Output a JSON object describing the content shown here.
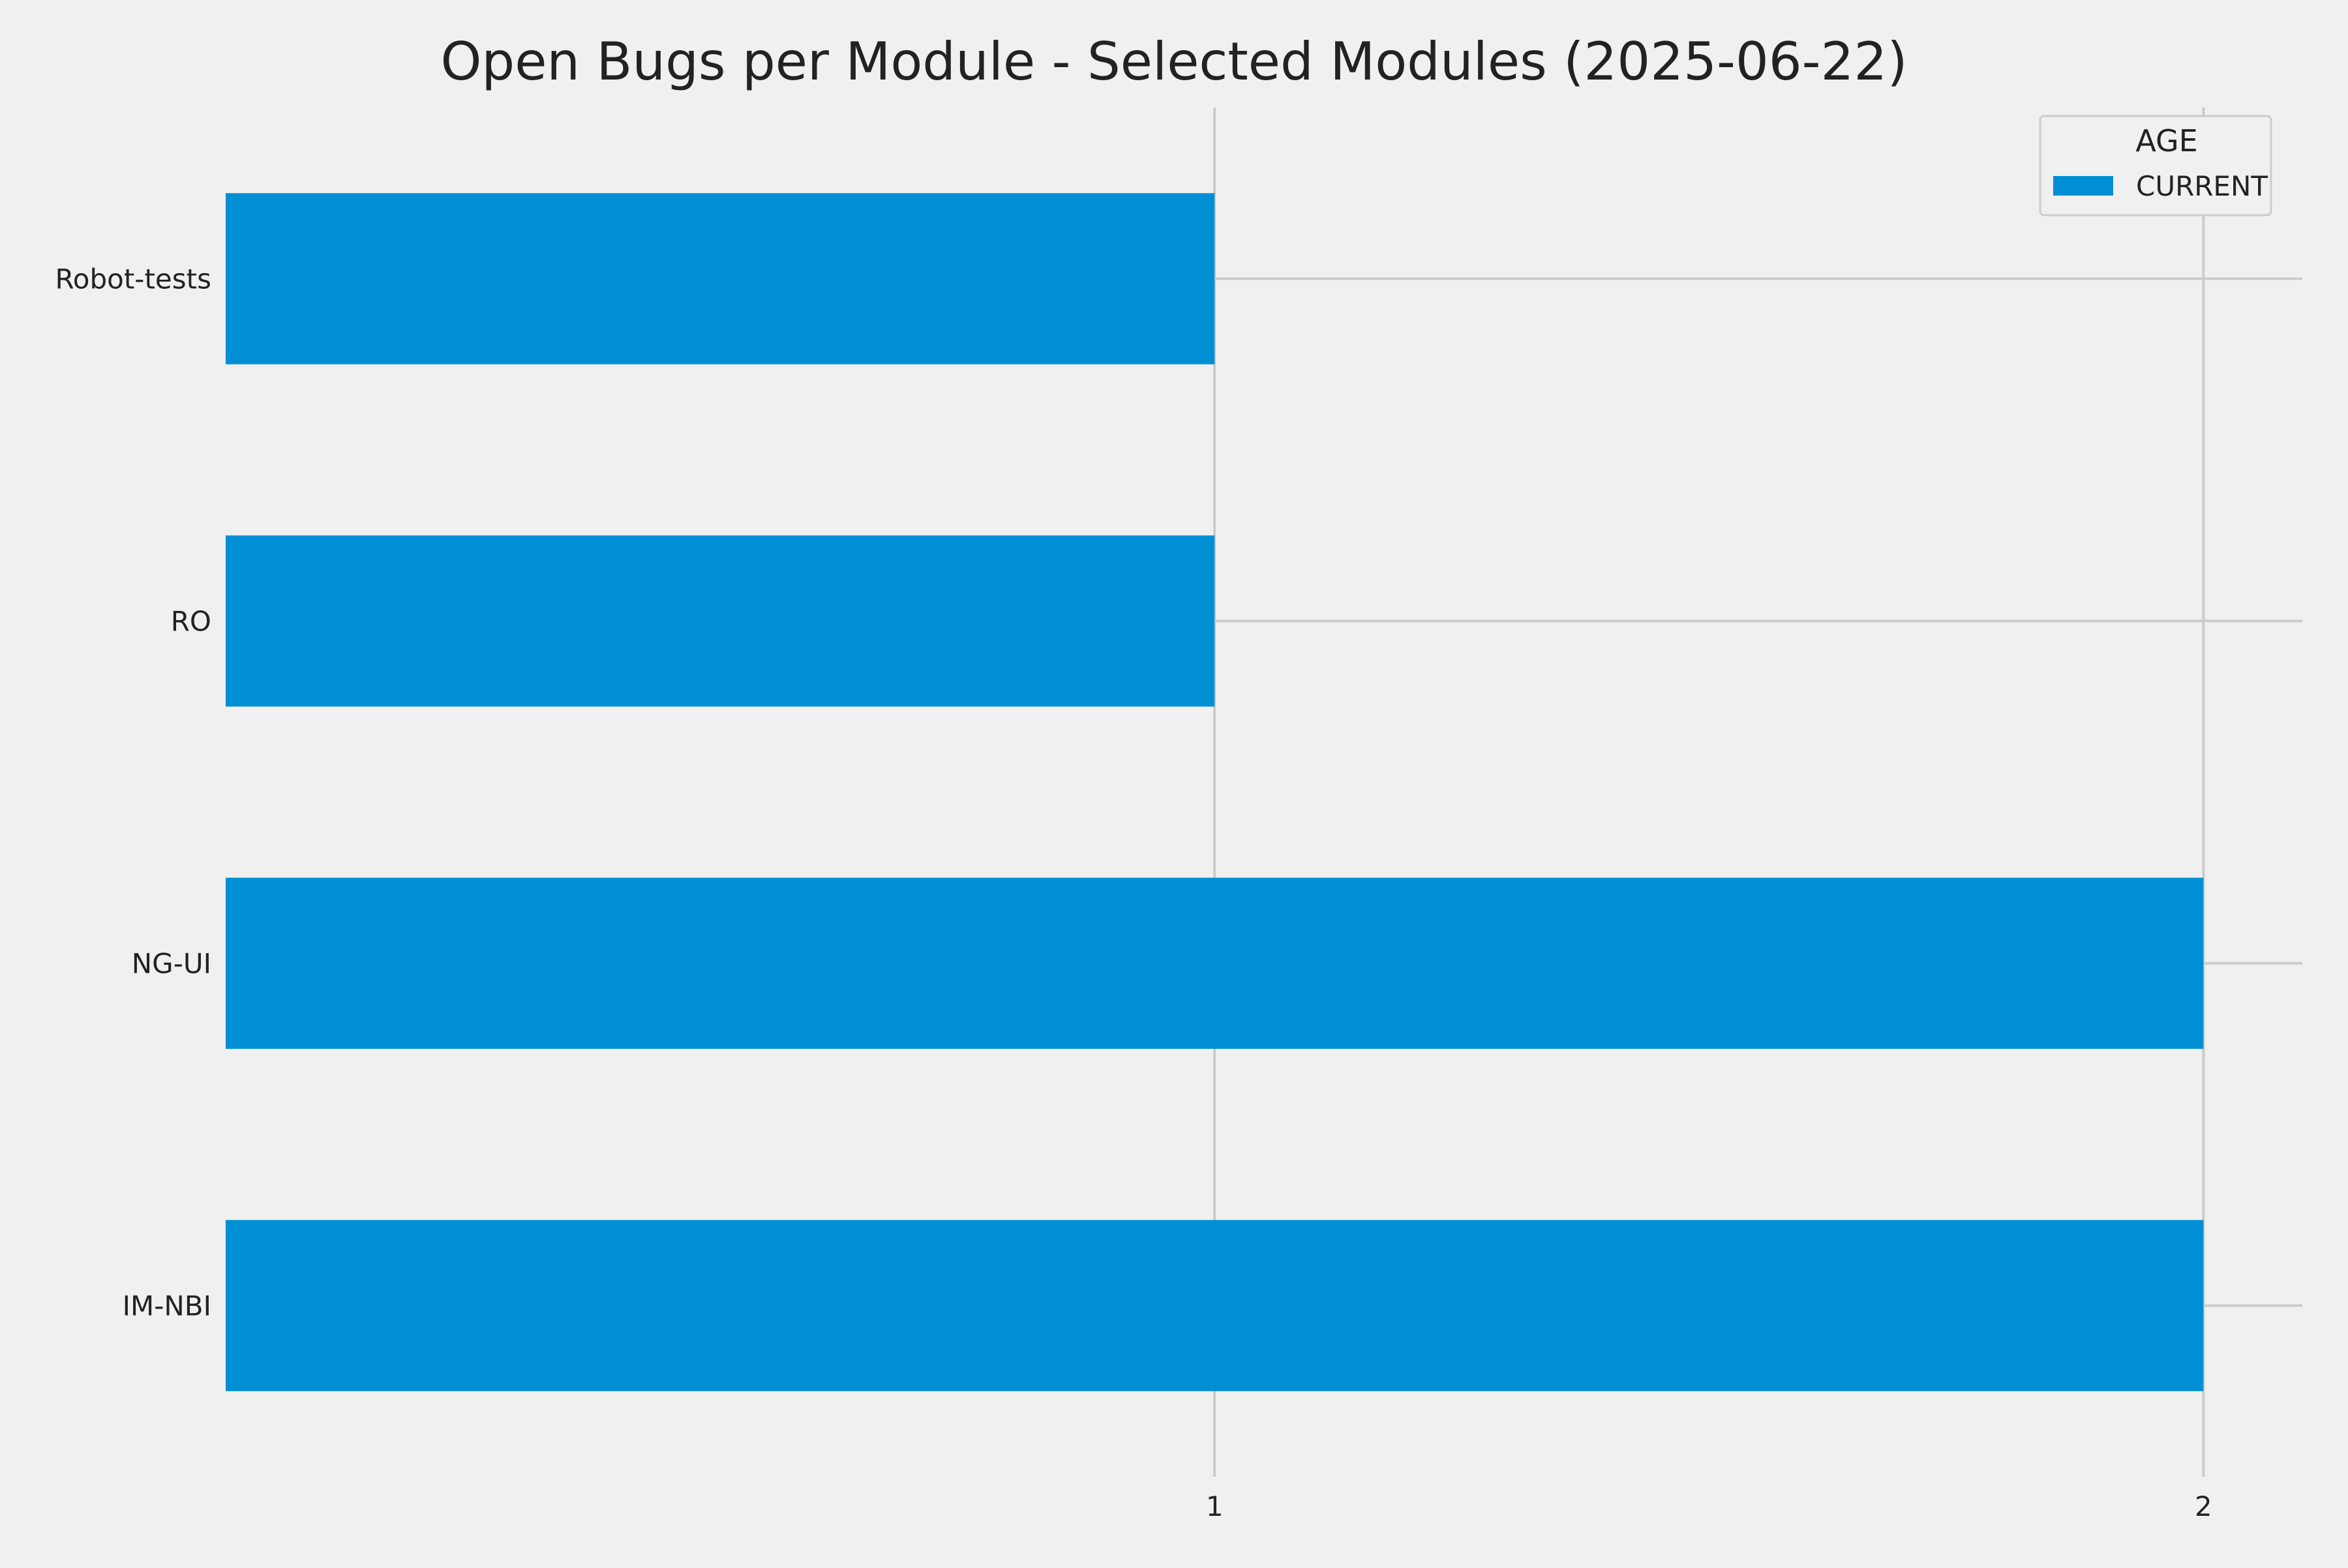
{
  "chart_data": {
    "type": "bar",
    "orientation": "horizontal",
    "title": "Open Bugs per Module - Selected Modules (2025-06-22)",
    "xlabel": "",
    "ylabel": "",
    "categories": [
      "IM-NBI",
      "NG-UI",
      "RO",
      "Robot-tests"
    ],
    "series": [
      {
        "name": "CURRENT",
        "values": [
          2,
          2,
          1,
          1
        ],
        "color": "#008fd5"
      }
    ],
    "xlim": [
      0,
      2.1
    ],
    "xticks": [
      1,
      2
    ],
    "xtick_labels": [
      "1",
      "2"
    ],
    "grid": true,
    "legend": {
      "title": "AGE",
      "position": "top-right"
    },
    "colors": {
      "background": "#f0f0f0",
      "grid": "#cbcbcb",
      "text": "#222222"
    }
  }
}
